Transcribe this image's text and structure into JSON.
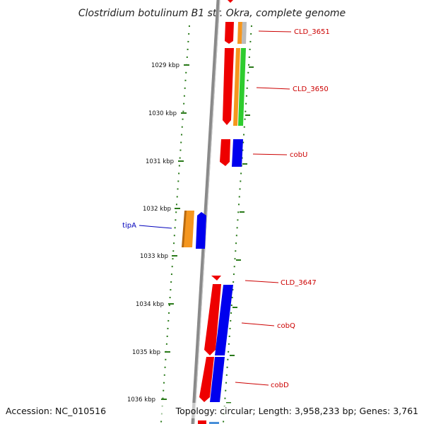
{
  "title": "Clostridium botulinum B1 str. Okra, complete genome",
  "footer": {
    "accession": "Accession: NC_010516",
    "summary": "Topology: circular; Length: 3,958,233 bp; Genes: 3,761"
  },
  "ticks": [
    "1029 kbp",
    "1030 kbp",
    "1031 kbp",
    "1032 kbp",
    "1033 kbp",
    "1034 kbp",
    "1035 kbp",
    "1036 kbp"
  ],
  "colors": {
    "backbone": "#8a8a8a",
    "tick": "#2a7a1a",
    "red": "#ee0000",
    "orange": "#f5961e",
    "green": "#2ecc2e",
    "blue": "#0000ee",
    "gray": "#bbbbbb",
    "label_plus": "#cc0000",
    "label_minus": "#0000bb"
  },
  "gene_labels": [
    {
      "name": "CLD_3651",
      "strand": "plus"
    },
    {
      "name": "CLD_3650",
      "strand": "plus"
    },
    {
      "name": "cobU",
      "strand": "plus"
    },
    {
      "name": "tipA",
      "strand": "minus"
    },
    {
      "name": "CLD_3647",
      "strand": "plus"
    },
    {
      "name": "cobQ",
      "strand": "plus"
    },
    {
      "name": "cobD",
      "strand": "plus"
    }
  ]
}
